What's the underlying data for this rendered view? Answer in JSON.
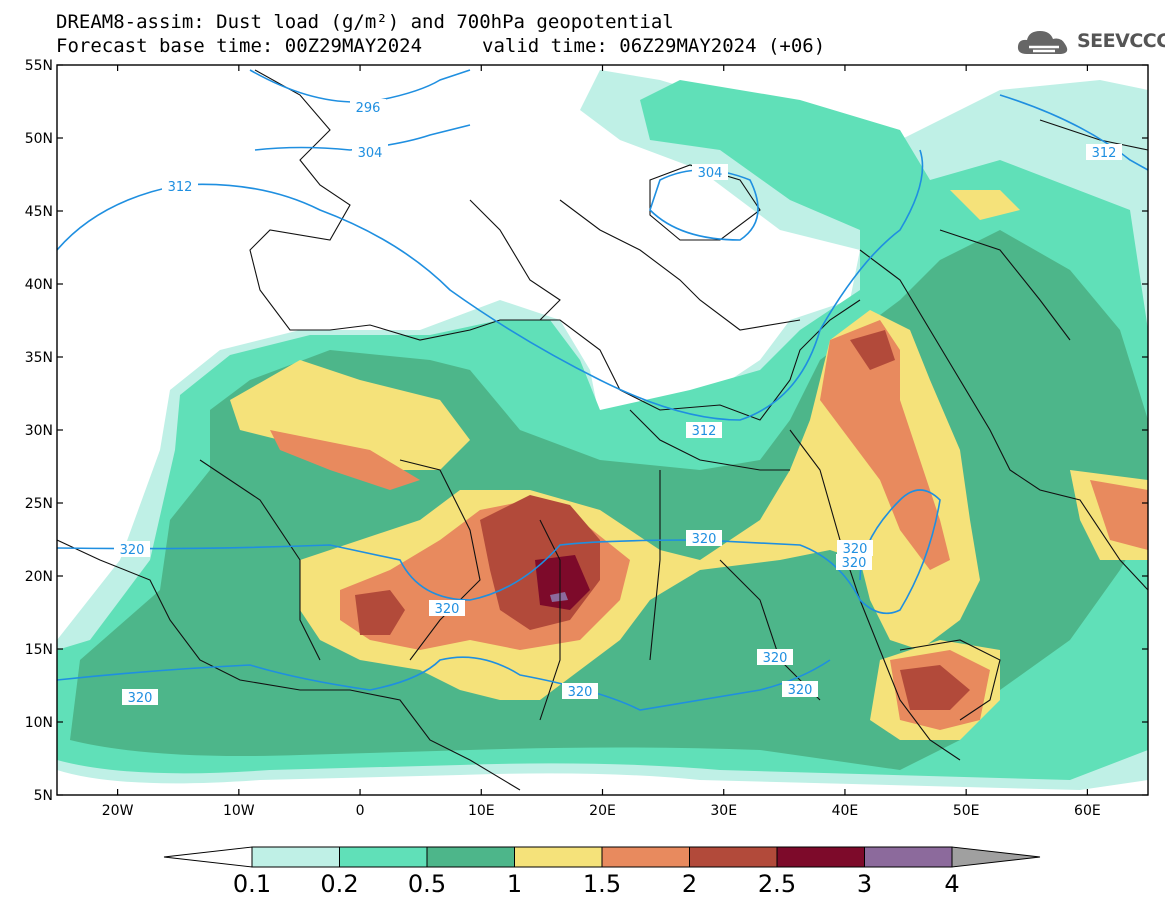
{
  "title": {
    "line1": "DREAM8-assim: Dust load (g/m²) and 700hPa geopotential",
    "line2_base": "Forecast base time: 00Z29MAY2024",
    "line2_valid": "valid time: 06Z29MAY2024 (+06)"
  },
  "logo": {
    "text": "SEEVCCC",
    "icon": "cloud-logo-icon"
  },
  "axes": {
    "lat_labels": [
      "55N",
      "50N",
      "45N",
      "40N",
      "35N",
      "30N",
      "25N",
      "20N",
      "15N",
      "10N",
      "5N"
    ],
    "lon_labels": [
      "20W",
      "10W",
      "0",
      "10E",
      "20E",
      "30E",
      "40E",
      "50E",
      "60E"
    ],
    "lat_range": [
      5,
      55
    ],
    "lon_range": [
      -25,
      65
    ]
  },
  "contours": {
    "labels": [
      "296",
      "304",
      "304",
      "312",
      "312",
      "312",
      "320",
      "320",
      "320",
      "320",
      "320",
      "320",
      "320",
      "320",
      "320"
    ]
  },
  "colorbar": {
    "levels": [
      "0.1",
      "0.2",
      "0.5",
      "1",
      "1.5",
      "2",
      "2.5",
      "3",
      "4"
    ],
    "colors": [
      "#ffffff",
      "#bff0e6",
      "#60e0b8",
      "#4db68a",
      "#f5e27a",
      "#e88a5e",
      "#b24a3a",
      "#7d0a2a",
      "#8c6a9c",
      "#a0a0a0"
    ]
  }
}
